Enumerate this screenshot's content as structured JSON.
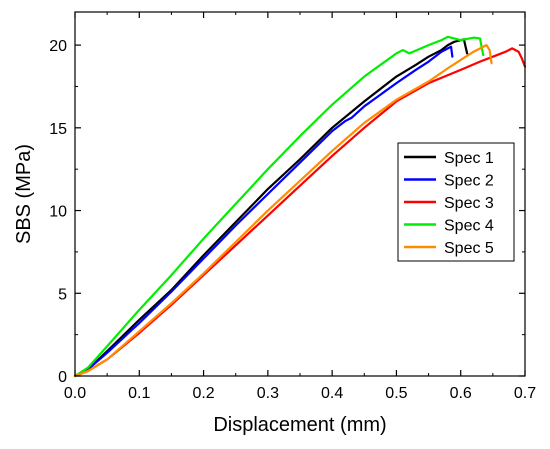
{
  "chart_data": {
    "type": "line",
    "title": "",
    "xlabel": "Displacement (mm)",
    "ylabel": "SBS (MPa)",
    "xlim": [
      0.0,
      0.7
    ],
    "ylim": [
      0,
      22
    ],
    "x_ticks": [
      "0.0",
      "0.1",
      "0.2",
      "0.3",
      "0.4",
      "0.5",
      "0.6",
      "0.7"
    ],
    "y_ticks": [
      "0",
      "5",
      "10",
      "15",
      "20"
    ],
    "grid": false,
    "legend_position": "right",
    "series": [
      {
        "name": "Spec 1",
        "color": "#000000",
        "x": [
          0.0,
          0.02,
          0.05,
          0.1,
          0.15,
          0.2,
          0.25,
          0.3,
          0.35,
          0.4,
          0.45,
          0.5,
          0.53,
          0.55,
          0.57,
          0.58,
          0.59,
          0.6,
          0.605,
          0.607,
          0.61
        ],
        "y": [
          0.0,
          0.4,
          1.5,
          3.4,
          5.2,
          7.3,
          9.3,
          11.3,
          13.1,
          15.0,
          16.6,
          18.1,
          18.8,
          19.3,
          19.7,
          20.0,
          20.2,
          20.3,
          20.35,
          20.0,
          19.5
        ]
      },
      {
        "name": "Spec 2",
        "color": "#0000ff",
        "x": [
          0.0,
          0.02,
          0.05,
          0.1,
          0.15,
          0.2,
          0.25,
          0.3,
          0.35,
          0.4,
          0.42,
          0.43,
          0.45,
          0.5,
          0.53,
          0.55,
          0.57,
          0.58,
          0.585,
          0.587
        ],
        "y": [
          0.0,
          0.4,
          1.4,
          3.2,
          5.1,
          7.1,
          9.1,
          11.0,
          12.9,
          14.8,
          15.4,
          15.6,
          16.3,
          17.7,
          18.5,
          19.0,
          19.6,
          19.8,
          19.9,
          19.3
        ]
      },
      {
        "name": "Spec 3",
        "color": "#ff0000",
        "x": [
          0.0,
          0.02,
          0.05,
          0.1,
          0.15,
          0.2,
          0.25,
          0.3,
          0.35,
          0.4,
          0.45,
          0.5,
          0.55,
          0.6,
          0.63,
          0.65,
          0.67,
          0.68,
          0.69,
          0.695,
          0.7
        ],
        "y": [
          0.0,
          0.3,
          1.0,
          2.6,
          4.3,
          6.1,
          7.9,
          9.7,
          11.5,
          13.3,
          15.0,
          16.6,
          17.7,
          18.5,
          19.0,
          19.3,
          19.6,
          19.8,
          19.6,
          19.2,
          18.7
        ]
      },
      {
        "name": "Spec 4",
        "color": "#00ee00",
        "x": [
          0.0,
          0.02,
          0.05,
          0.1,
          0.15,
          0.2,
          0.25,
          0.3,
          0.35,
          0.4,
          0.45,
          0.5,
          0.51,
          0.52,
          0.55,
          0.57,
          0.58,
          0.59,
          0.6,
          0.62,
          0.63,
          0.635
        ],
        "y": [
          0.0,
          0.5,
          1.8,
          4.0,
          6.1,
          8.3,
          10.4,
          12.5,
          14.5,
          16.4,
          18.1,
          19.5,
          19.7,
          19.5,
          20.0,
          20.3,
          20.5,
          20.4,
          20.3,
          20.45,
          20.4,
          19.4
        ]
      },
      {
        "name": "Spec 5",
        "color": "#ff8c00",
        "x": [
          0.0,
          0.02,
          0.05,
          0.1,
          0.15,
          0.2,
          0.25,
          0.3,
          0.35,
          0.4,
          0.45,
          0.5,
          0.55,
          0.58,
          0.6,
          0.62,
          0.64,
          0.645,
          0.648
        ],
        "y": [
          0.0,
          0.3,
          1.0,
          2.7,
          4.4,
          6.2,
          8.1,
          10.0,
          11.8,
          13.6,
          15.3,
          16.7,
          17.8,
          18.6,
          19.1,
          19.6,
          20.0,
          19.7,
          18.9
        ]
      }
    ]
  }
}
